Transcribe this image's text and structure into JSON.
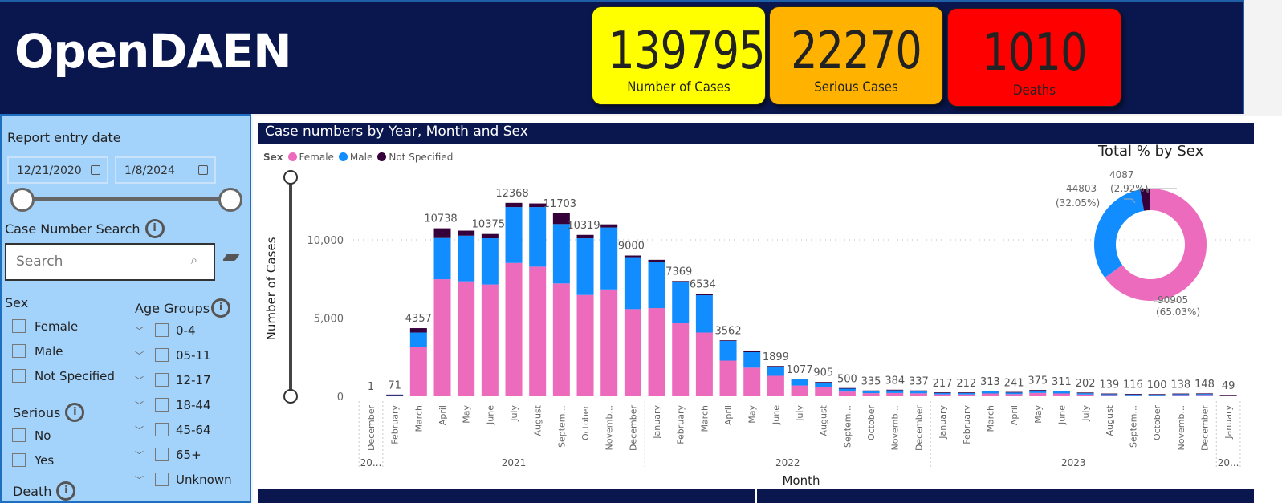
{
  "header": {
    "title": "OpenDAEN"
  },
  "kpis": [
    {
      "value": "139795",
      "label": "Number of Cases",
      "color": "#ffff00"
    },
    {
      "value": "22270",
      "label": "Serious Cases",
      "color": "#ffb300"
    },
    {
      "value": "1010",
      "label": "Deaths",
      "color": "#ff0000"
    }
  ],
  "sidebar": {
    "date_label": "Report entry date",
    "date_from": "12/21/2020",
    "date_to": "1/8/2024",
    "search_label": "Case Number Search",
    "search_placeholder": "Search",
    "sex_label": "Sex",
    "sex_options": [
      "Female",
      "Male",
      "Not Specified"
    ],
    "serious_label": "Serious",
    "serious_options": [
      "No",
      "Yes"
    ],
    "death_label": "Death",
    "age_label": "Age Groups",
    "age_options": [
      "0-4",
      "05-11",
      "12-17",
      "18-44",
      "45-64",
      "65+",
      "Unknown"
    ]
  },
  "chart_data": [
    {
      "type": "bar",
      "stacked": true,
      "title": "Case numbers by Year, Month and Sex",
      "legend_title": "Sex",
      "legend_position": "top-left",
      "xlabel": "Month",
      "ylabel": "Number of Cases",
      "ylim": [
        0,
        12500
      ],
      "yticks": [
        "0",
        "5,000",
        "10,000"
      ],
      "ytick_values": [
        0,
        5000,
        10000
      ],
      "grid": true,
      "colors": {
        "Female": "#ec6bbd",
        "Male": "#118dff",
        "Not Specified": "#36003a"
      },
      "years": [
        {
          "label": "20...",
          "months": 1
        },
        {
          "label": "2021",
          "months": 11
        },
        {
          "label": "2022",
          "months": 12
        },
        {
          "label": "2023",
          "months": 12
        },
        {
          "label": "20...",
          "months": 1
        }
      ],
      "categories": [
        "December",
        "February",
        "March",
        "April",
        "May",
        "June",
        "July",
        "August",
        "Septem...",
        "October",
        "Novemb...",
        "December",
        "January",
        "February",
        "March",
        "April",
        "May",
        "June",
        "July",
        "August",
        "Septem...",
        "October",
        "Novemb...",
        "December",
        "January",
        "February",
        "March",
        "April",
        "May",
        "June",
        "July",
        "August",
        "Septem...",
        "October",
        "Novemb...",
        "December",
        "January"
      ],
      "series": [
        {
          "name": "Female",
          "values": [
            1,
            40,
            3171,
            7484,
            7350,
            7148,
            8524,
            8289,
            7215,
            6477,
            6829,
            5571,
            5638,
            4665,
            4078,
            2282,
            1829,
            1309,
            688,
            587,
            302,
            200,
            210,
            190,
            125,
            120,
            180,
            140,
            215,
            180,
            115,
            80,
            65,
            58,
            80,
            85,
            28
          ]
        },
        {
          "name": "Male",
          "values": [
            0,
            30,
            907,
            2634,
            2919,
            2953,
            3574,
            3809,
            3793,
            3624,
            3961,
            3322,
            2953,
            2618,
            2382,
            1259,
            990,
            587,
            386,
            286,
            185,
            130,
            170,
            142,
            88,
            88,
            128,
            97,
            155,
            126,
            83,
            56,
            48,
            40,
            55,
            60,
            20
          ]
        },
        {
          "name": "Not Specified",
          "values": [
            0,
            1,
            279,
            620,
            319,
            274,
            270,
            232,
            695,
            218,
            201,
            107,
            135,
            86,
            74,
            21,
            67,
            3,
            3,
            32,
            13,
            5,
            4,
            5,
            4,
            4,
            5,
            4,
            5,
            5,
            4,
            3,
            3,
            2,
            3,
            3,
            1
          ]
        }
      ],
      "totals": [
        1,
        71,
        4357,
        10738,
        10588,
        10375,
        12368,
        12330,
        11703,
        10319,
        10991,
        9000,
        8726,
        7369,
        6534,
        3562,
        2886,
        1899,
        1077,
        905,
        500,
        335,
        384,
        337,
        217,
        212,
        313,
        241,
        375,
        311,
        202,
        139,
        116,
        100,
        138,
        148,
        49
      ],
      "labeled": [
        true,
        true,
        true,
        true,
        false,
        true,
        true,
        false,
        true,
        true,
        false,
        true,
        false,
        true,
        true,
        true,
        false,
        true,
        true,
        true,
        true,
        true,
        true,
        true,
        true,
        true,
        true,
        true,
        true,
        true,
        true,
        true,
        true,
        true,
        true,
        true,
        true
      ]
    },
    {
      "type": "pie",
      "donut": true,
      "title": "Total % by Sex",
      "slices": [
        {
          "name": "Female",
          "value": 90905,
          "label": "90905",
          "pct": "(65.03%)"
        },
        {
          "name": "Male",
          "value": 44803,
          "label": "44803",
          "pct": "(32.05%)"
        },
        {
          "name": "Not Specified",
          "value": 4087,
          "label": "4087",
          "pct": "(2.92%)"
        }
      ]
    }
  ]
}
